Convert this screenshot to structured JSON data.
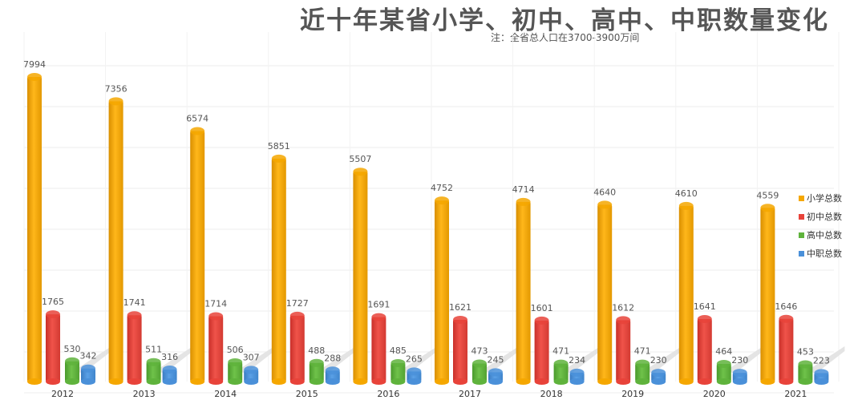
{
  "title": "近十年某省小学、初中、高中、中职数量变化",
  "subtitle": "注：全省总人口在3700-3900万间",
  "chart_data": {
    "type": "bar",
    "categories": [
      "2012",
      "2013",
      "2014",
      "2015",
      "2016",
      "2017",
      "2018",
      "2019",
      "2020",
      "2021"
    ],
    "series": [
      {
        "name": "小学总数",
        "color": "#f5a700",
        "values": [
          7994,
          7356,
          6574,
          5851,
          5507,
          4752,
          4714,
          4640,
          4610,
          4559
        ]
      },
      {
        "name": "初中总数",
        "color": "#e8433a",
        "values": [
          1765,
          1741,
          1714,
          1727,
          1691,
          1621,
          1601,
          1612,
          1641,
          1646
        ]
      },
      {
        "name": "高中总数",
        "color": "#5fb33c",
        "values": [
          530,
          511,
          506,
          488,
          485,
          473,
          471,
          471,
          464,
          453
        ]
      },
      {
        "name": "中职总数",
        "color": "#4a90d9",
        "values": [
          342,
          316,
          307,
          288,
          265,
          245,
          234,
          230,
          230,
          223
        ]
      }
    ],
    "ylim": [
      0,
      8500
    ],
    "grid": true,
    "legend_position": "right"
  }
}
